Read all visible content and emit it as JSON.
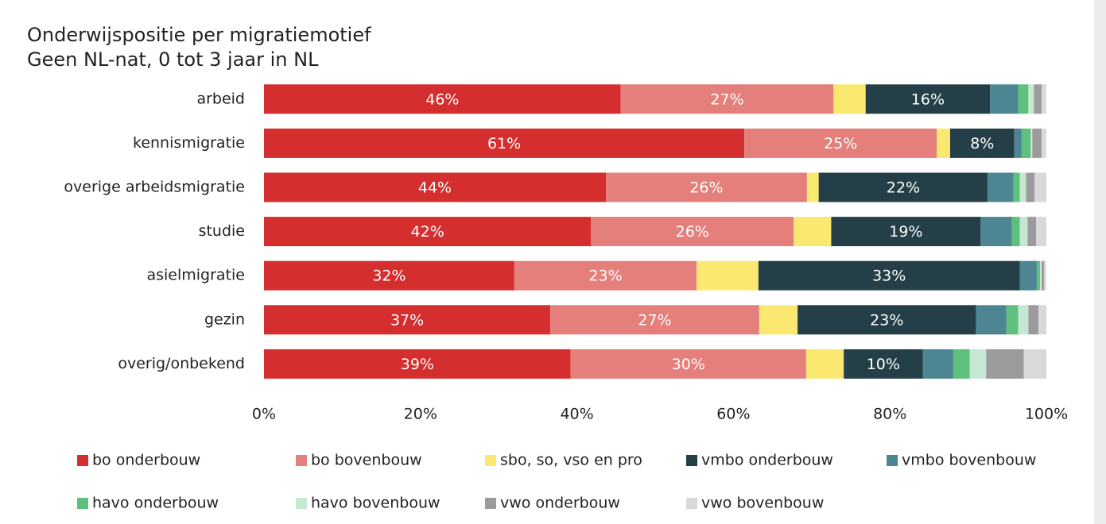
{
  "chart_data": {
    "type": "stacked-bar-horizontal",
    "title": "Onderwijspositie per migratiemotief",
    "subtitle": "Geen NL-nat, 0 tot 3 jaar in NL",
    "categories": [
      "arbeid",
      "kennismigratie",
      "overige arbeidsmigratie",
      "studie",
      "asielmigratie",
      "gezin",
      "overig/onbekend"
    ],
    "series": [
      {
        "name": "bo onderbouw",
        "color": "#d42e2e",
        "values": [
          45.6,
          61.4,
          43.7,
          41.8,
          32.0,
          36.6,
          39.2
        ],
        "value_labels": [
          "46%",
          "61%",
          "44%",
          "42%",
          "32%",
          "37%",
          "39%"
        ]
      },
      {
        "name": "bo bovenbouw",
        "color": "#e57f7b",
        "values": [
          27.2,
          24.6,
          25.7,
          25.9,
          23.3,
          26.7,
          30.1
        ],
        "value_labels": [
          "27%",
          "25%",
          "26%",
          "26%",
          "23%",
          "27%",
          "30%"
        ]
      },
      {
        "name": "sbo, so, vso en pro",
        "color": "#fbe870",
        "values": [
          4.1,
          1.7,
          1.5,
          4.8,
          7.9,
          4.9,
          4.8
        ]
      },
      {
        "name": "vmbo onderbouw",
        "color": "#243f48",
        "values": [
          15.9,
          8.2,
          21.6,
          19.1,
          33.4,
          22.8,
          10.1
        ],
        "value_labels": [
          "16%",
          "8%",
          "22%",
          "19%",
          "33%",
          "23%",
          "10%"
        ]
      },
      {
        "name": "vmbo bovenbouw",
        "color": "#4e8593",
        "values": [
          3.6,
          0.9,
          3.3,
          4.0,
          2.2,
          3.9,
          3.9
        ]
      },
      {
        "name": "havo onderbouw",
        "color": "#5fbf7d",
        "values": [
          1.3,
          1.2,
          0.8,
          1.0,
          0.4,
          1.5,
          2.1
        ]
      },
      {
        "name": "havo bovenbouw",
        "color": "#c6e8d3",
        "values": [
          0.7,
          0.2,
          0.8,
          1.0,
          0.2,
          1.3,
          2.1
        ]
      },
      {
        "name": "vwo onderbouw",
        "color": "#9b9b9b",
        "values": [
          1.0,
          1.2,
          1.1,
          1.1,
          0.3,
          1.3,
          4.8
        ]
      },
      {
        "name": "vwo bovenbouw",
        "color": "#d9d9d9",
        "values": [
          0.6,
          0.6,
          1.5,
          1.3,
          0.3,
          1.0,
          2.9
        ]
      }
    ],
    "xlim": [
      0,
      100
    ],
    "xticks": [
      {
        "value": 0,
        "label": "0%"
      },
      {
        "value": 20,
        "label": "20%"
      },
      {
        "value": 40,
        "label": "40%"
      },
      {
        "value": 60,
        "label": "60%"
      },
      {
        "value": 80,
        "label": "80%"
      },
      {
        "value": 100,
        "label": "100%"
      }
    ],
    "legend": "bottom"
  }
}
